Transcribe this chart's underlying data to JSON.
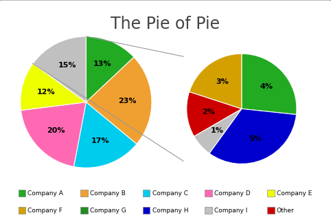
{
  "title": "The Pie of Pie",
  "title_fontsize": 17,
  "main_pie": {
    "values": [
      13,
      23,
      17,
      20,
      12,
      15
    ],
    "colors": [
      "#22aa22",
      "#f0a030",
      "#00ccee",
      "#ff69b4",
      "#eeff00",
      "#c0c0c0"
    ],
    "percentages": [
      "13%",
      "23%",
      "17%",
      "20%",
      "12%",
      "15%"
    ]
  },
  "sub_pie": {
    "values": [
      4,
      5,
      1,
      2,
      3
    ],
    "colors": [
      "#22aa22",
      "#0000cc",
      "#c0c0c0",
      "#cc0000",
      "#d4a000"
    ],
    "percentages": [
      "4%",
      "5%",
      "1%",
      "2%",
      "3%"
    ]
  },
  "legend": [
    {
      "label": "Company A",
      "color": "#22aa22"
    },
    {
      "label": "Company B",
      "color": "#f0a030"
    },
    {
      "label": "Company C",
      "color": "#00ccee"
    },
    {
      "label": "Company D",
      "color": "#ff69b4"
    },
    {
      "label": "Company E",
      "color": "#eeff00"
    },
    {
      "label": "Company F",
      "color": "#d4a000"
    },
    {
      "label": "Company G",
      "color": "#228B22"
    },
    {
      "label": "Company H",
      "color": "#0000cc"
    },
    {
      "label": "Company I",
      "color": "#c0c0c0"
    },
    {
      "label": "Other",
      "color": "#cc0000"
    }
  ],
  "connector_gray_idx": 5,
  "bg_color": "#ffffff",
  "border_color": "#bbbbbb"
}
